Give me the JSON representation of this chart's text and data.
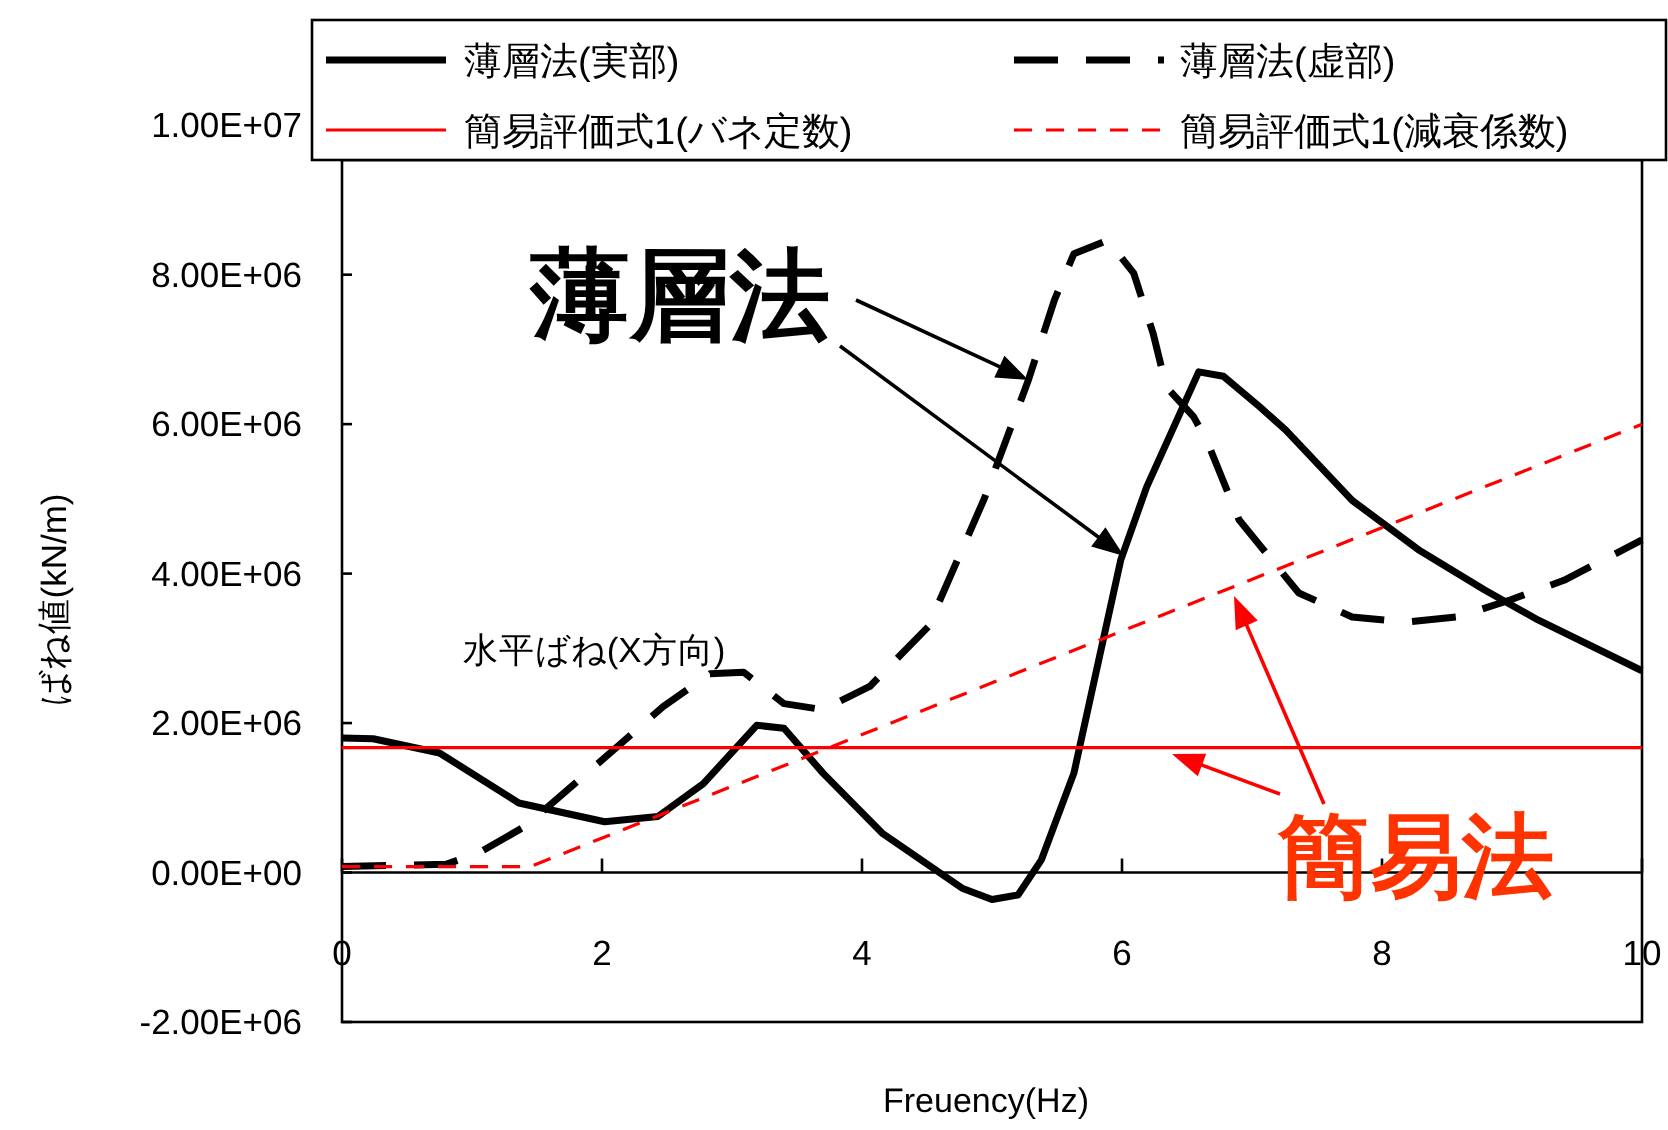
{
  "chart_data": {
    "type": "line",
    "xlabel": "Freuency(Hz)",
    "ylabel": "ばね値(kN/m)",
    "annotations": [
      {
        "text": "薄層法",
        "x": 5.28,
        "y": 6590000
      },
      "簡易法",
      "水平ばね(X方向)"
    ],
    "series": [
      {
        "name": "薄層法(実部)",
        "color": "#000000",
        "line_style": "solid",
        "x": [
          0,
          0.24,
          0.75,
          1.36,
          2.02,
          2.43,
          2.78,
          3.19,
          3.4,
          3.7,
          4.16,
          4.77,
          5.0,
          5.2,
          5.38,
          5.63,
          5.99,
          6.19,
          6.59,
          6.78,
          7.06,
          7.26,
          7.77,
          8.28,
          8.79,
          9.2,
          10
        ],
        "values": [
          1800000.0,
          1790000.0,
          1600000.0,
          930000.0,
          680000.0,
          750000.0,
          1190000.0,
          1970000.0,
          1930000.0,
          1330000.0,
          520000.0,
          -210000.0,
          -360000.0,
          -300000.0,
          170000.0,
          1330000.0,
          4180000.0,
          5160000.0,
          6700000.0,
          6640000.0,
          6230000.0,
          5920000.0,
          4980000.0,
          4320000.0,
          3780000.0,
          3380000.0,
          2700000.0
        ]
      },
      {
        "name": "薄層法(虚部)",
        "color": "#000000",
        "line_style": "dashed",
        "x": [
          0,
          0.8,
          1.05,
          1.41,
          1.97,
          2.47,
          2.83,
          3.09,
          3.4,
          3.7,
          4.06,
          4.51,
          4.94,
          5.28,
          5.48,
          5.63,
          5.89,
          6.09,
          6.24,
          6.34,
          6.55,
          6.65,
          6.9,
          7.36,
          7.77,
          8.18,
          8.58,
          8.99,
          9.4,
          10
        ],
        "values": [
          80000.0,
          110000.0,
          260000.0,
          620000.0,
          1460000.0,
          2220000.0,
          2660000.0,
          2680000.0,
          2260000.0,
          2180000.0,
          2490000.0,
          3290000.0,
          5000000.0,
          6590000.0,
          7660000.0,
          8280000.0,
          8460000.0,
          8020000.0,
          7210000.0,
          6500000.0,
          6100000.0,
          5790000.0,
          4720000.0,
          3740000.0,
          3420000.0,
          3350000.0,
          3420000.0,
          3650000.0,
          3910000.0,
          4450000.0
        ]
      },
      {
        "name": "簡易評価式1(バネ定数)",
        "color": "#ff0000",
        "line_style": "solid",
        "x": [
          0,
          10
        ],
        "values": [
          1670000.0,
          1670000.0
        ]
      },
      {
        "name": "簡易評価式1(減衰係数)",
        "color": "#ff0000",
        "line_style": "dashed",
        "x": [
          0,
          1.45,
          10
        ],
        "values": [
          80000.0,
          80000.0,
          6000000.0
        ]
      }
    ],
    "xlim": [
      0,
      10
    ],
    "xticks": [
      0,
      2,
      4,
      6,
      8,
      10
    ],
    "ylim": [
      -2000000,
      10000000
    ],
    "yticks": [
      {
        "value": -2000000,
        "label": "-2.00E+06"
      },
      {
        "value": 0,
        "label": "0.00E+00"
      },
      {
        "value": 2000000,
        "label": "2.00E+06"
      },
      {
        "value": 4000000,
        "label": "4.00E+06"
      },
      {
        "value": 6000000,
        "label": "6.00E+06"
      },
      {
        "value": 8000000,
        "label": "8.00E+06"
      },
      {
        "value": 10000000,
        "label": "1.00E+07"
      }
    ],
    "grid": false,
    "legend": "top",
    "marker": "none"
  }
}
